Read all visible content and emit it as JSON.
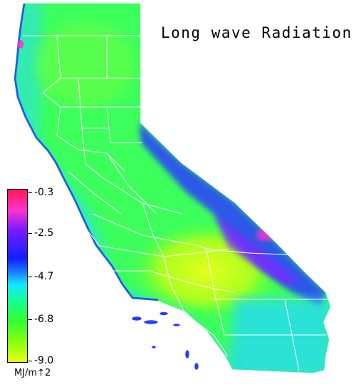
{
  "map": {
    "title": "Long wave Radiation",
    "units": "MJ/m↑2",
    "legend": {
      "ticks": [
        "-0.3",
        "-2.5",
        "-4.7",
        "-6.8",
        "-9.0"
      ]
    },
    "colors": {
      "coast": "#30e6c8",
      "central_valley": "#c8ff20",
      "north": "#3cff5c",
      "sierra": "#2030ff",
      "peaks": "#ff33cc",
      "borders": "#ffffff"
    }
  }
}
